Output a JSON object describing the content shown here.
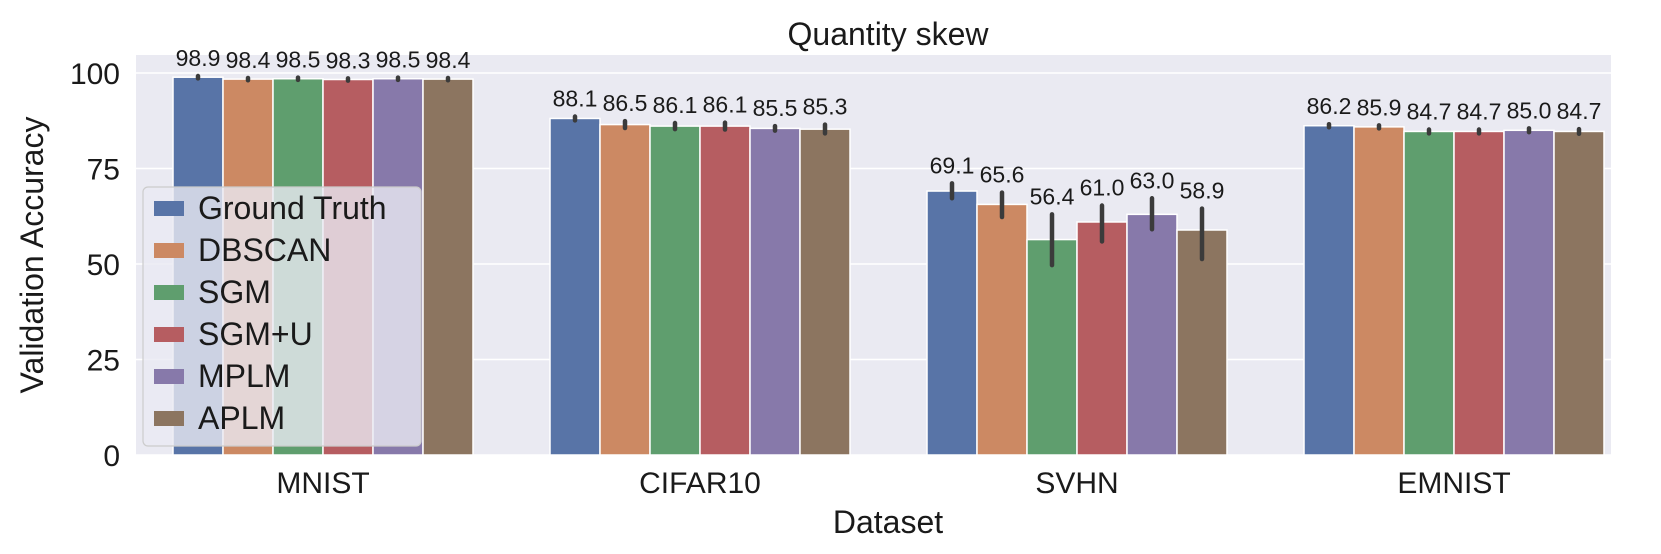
{
  "chart_data": {
    "type": "bar",
    "title": "Quantity skew",
    "xlabel": "Dataset",
    "ylabel": "Validation Accuracy",
    "ylim": [
      0,
      100
    ],
    "yticks": [
      "0",
      "25",
      "50",
      "75",
      "100"
    ],
    "grid": true,
    "legend_position": "center-left",
    "categories": [
      "MNIST",
      "CIFAR10",
      "SVHN",
      "EMNIST"
    ],
    "series": [
      {
        "name": "Ground Truth",
        "color": "#5874a7",
        "values": [
          98.9,
          88.1,
          69.1,
          86.2
        ],
        "labels": [
          "98.9",
          "88.1",
          "69.1",
          "86.2"
        ],
        "err_low": [
          98.6,
          87.6,
          67.2,
          85.8
        ],
        "err_high": [
          99.2,
          88.6,
          71.1,
          86.6
        ]
      },
      {
        "name": "DBSCAN",
        "color": "#cc8963",
        "values": [
          98.4,
          86.5,
          65.6,
          85.9
        ],
        "labels": [
          "98.4",
          "86.5",
          "65.6",
          "85.9"
        ],
        "err_low": [
          98.1,
          85.6,
          62.3,
          85.5
        ],
        "err_high": [
          98.7,
          87.4,
          68.7,
          86.3
        ]
      },
      {
        "name": "SGM",
        "color": "#5f9e6e",
        "values": [
          98.5,
          86.1,
          56.4,
          84.7
        ],
        "labels": [
          "98.5",
          "86.1",
          "56.4",
          "84.7"
        ],
        "err_low": [
          98.2,
          85.3,
          49.7,
          84.2
        ],
        "err_high": [
          98.8,
          86.9,
          63.0,
          85.2
        ]
      },
      {
        "name": "SGM+U",
        "color": "#b65d61",
        "values": [
          98.3,
          86.1,
          61.0,
          84.7
        ],
        "labels": [
          "98.3",
          "86.1",
          "61.0",
          "84.7"
        ],
        "err_low": [
          98.0,
          85.2,
          55.9,
          84.2
        ],
        "err_high": [
          98.6,
          87.0,
          65.3,
          85.2
        ]
      },
      {
        "name": "MPLM",
        "color": "#8779aa",
        "values": [
          98.5,
          85.5,
          63.0,
          85.0
        ],
        "labels": [
          "98.5",
          "85.5",
          "63.0",
          "85.0"
        ],
        "err_low": [
          98.2,
          84.9,
          59.1,
          84.5
        ],
        "err_high": [
          98.8,
          86.1,
          67.2,
          85.5
        ]
      },
      {
        "name": "APLM",
        "color": "#8c7560",
        "values": [
          98.4,
          85.3,
          58.9,
          84.7
        ],
        "labels": [
          "98.4",
          "85.3",
          "58.9",
          "84.7"
        ],
        "err_low": [
          98.1,
          84.2,
          51.3,
          84.1
        ],
        "err_high": [
          98.7,
          86.5,
          64.5,
          85.3
        ]
      }
    ]
  }
}
